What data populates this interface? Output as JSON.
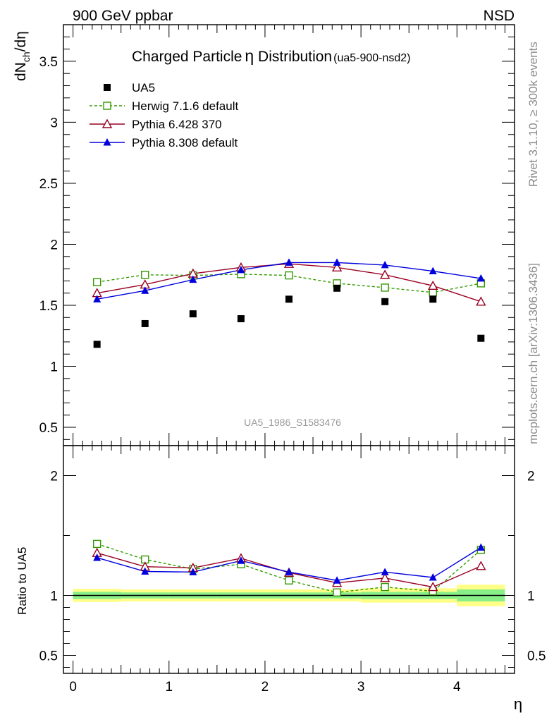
{
  "header": {
    "left": "900 GeV ppbar",
    "right": "NSD"
  },
  "side_labels": {
    "rivet": "Rivet 3.1.10, ≥ 300k events",
    "mcplots": "mcplots.cern.ch [arXiv:1306.3436]"
  },
  "chart_data": {
    "type": "line",
    "title": "Charged Particle",
    "title_symbol": "η",
    "title_rest": " Distribution",
    "title_sub": "(ua5-900-nsd2)",
    "watermark": "UA5_1986_S1583476",
    "ylabel_main": "dN",
    "ylabel_sub": "ch",
    "ylabel_rest": "/dη",
    "ylabel_ratio": "Ratio to UA5",
    "xlabel": "η",
    "xlim": [
      -0.1,
      4.6
    ],
    "ylim_main": [
      0.35,
      3.8
    ],
    "ylim_ratio": [
      0.35,
      2.25
    ],
    "xticks": [
      "0",
      "1",
      "2",
      "3",
      "4"
    ],
    "yticks_main": [
      "0.5",
      "1",
      "1.5",
      "2",
      "2.5",
      "3",
      "3.5"
    ],
    "yticks_ratio": [
      "0.5",
      "1",
      "2"
    ],
    "x": [
      0.25,
      0.75,
      1.25,
      1.75,
      2.25,
      2.75,
      3.25,
      3.75,
      4.25
    ],
    "bin_edges": [
      0,
      0.5,
      1.0,
      1.5,
      2.0,
      2.5,
      3.0,
      3.5,
      4.0,
      4.5
    ],
    "data": {
      "name": "UA5",
      "values": [
        1.18,
        1.35,
        1.43,
        1.39,
        1.55,
        1.64,
        1.53,
        1.55,
        1.23
      ],
      "stat_rel_err": [
        0.03,
        0.025,
        0.025,
        0.025,
        0.025,
        0.025,
        0.03,
        0.03,
        0.05
      ],
      "tot_rel_err": [
        0.055,
        0.05,
        0.05,
        0.05,
        0.05,
        0.05,
        0.06,
        0.06,
        0.09
      ]
    },
    "series": [
      {
        "name": "Herwig 7.1.6 default",
        "color": "#339900",
        "marker": "open-square",
        "dashed": true,
        "values": [
          1.69,
          1.75,
          1.745,
          1.755,
          1.745,
          1.68,
          1.645,
          1.605,
          1.68
        ],
        "ratio": [
          1.43,
          1.3,
          1.22,
          1.26,
          1.125,
          1.025,
          1.07,
          1.035,
          1.38
        ]
      },
      {
        "name": "Pythia 6.428 370",
        "color": "#990022",
        "marker": "open-triangle",
        "dashed": false,
        "values": [
          1.6,
          1.67,
          1.76,
          1.81,
          1.84,
          1.81,
          1.75,
          1.66,
          1.53
        ],
        "ratio": [
          1.355,
          1.24,
          1.23,
          1.31,
          1.19,
          1.105,
          1.145,
          1.07,
          1.245
        ]
      },
      {
        "name": "Pythia 8.308 default",
        "color": "#0000dd",
        "marker": "filled-triangle",
        "dashed": false,
        "values": [
          1.55,
          1.62,
          1.71,
          1.79,
          1.85,
          1.85,
          1.83,
          1.78,
          1.72
        ],
        "ratio": [
          1.315,
          1.2,
          1.195,
          1.29,
          1.195,
          1.125,
          1.195,
          1.15,
          1.4
        ]
      }
    ],
    "colors": {
      "data": "#000000",
      "band_outer": "#ffff88",
      "band_inner": "#88ee88",
      "watermark": "#999999"
    }
  }
}
